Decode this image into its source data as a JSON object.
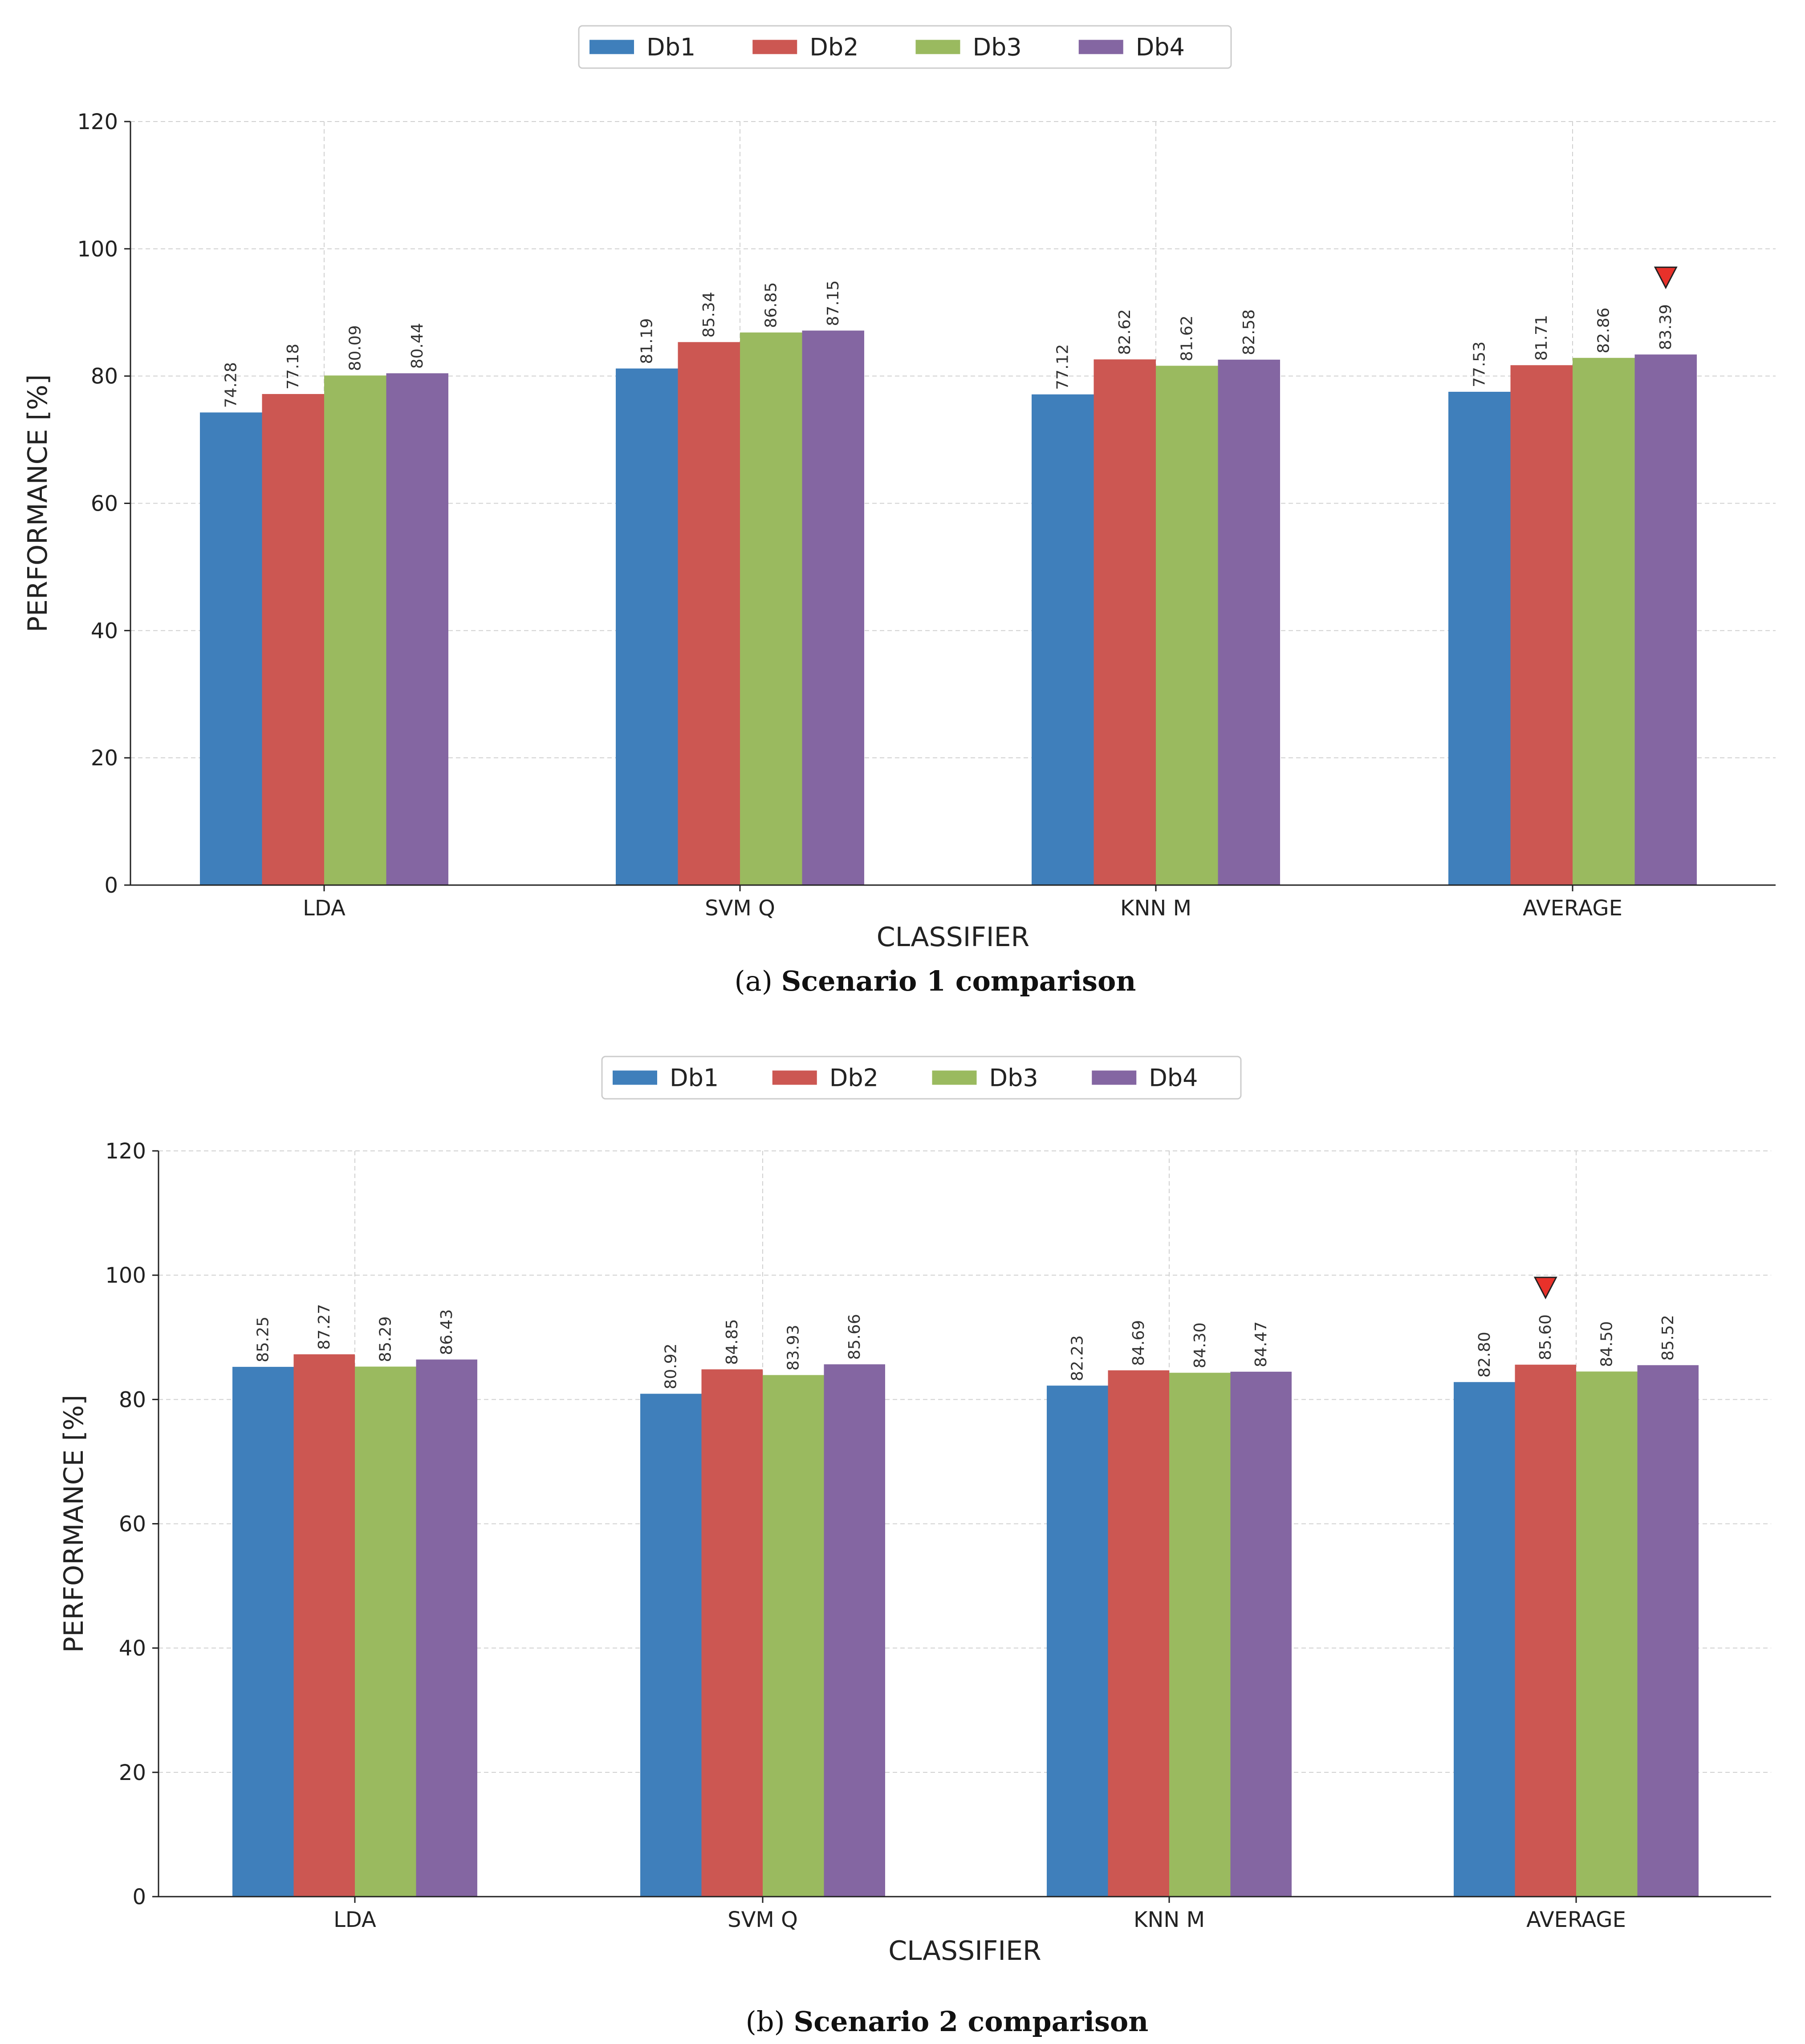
{
  "chart_data": [
    {
      "type": "bar",
      "caption_letter": "a",
      "caption_text": "Scenario 1 comparison",
      "categories": [
        "LDA",
        "SVM Q",
        "KNN M",
        "AVERAGE"
      ],
      "series": [
        {
          "name": "Db1",
          "color": "#3f7fbb",
          "values": [
            74.28,
            81.19,
            77.12,
            77.53
          ],
          "labels": [
            "74.28",
            "81.19",
            "77.12",
            "77.53"
          ]
        },
        {
          "name": "Db2",
          "color": "#cc5752",
          "values": [
            77.18,
            85.34,
            82.62,
            81.71
          ],
          "labels": [
            "77.18",
            "85.34",
            "82.62",
            "81.71"
          ]
        },
        {
          "name": "Db3",
          "color": "#9aba5f",
          "values": [
            80.09,
            86.85,
            81.62,
            82.86
          ],
          "labels": [
            "80.09",
            "86.85",
            "81.62",
            "82.86"
          ]
        },
        {
          "name": "Db4",
          "color": "#8466a2",
          "values": [
            80.44,
            87.15,
            82.58,
            83.39
          ],
          "labels": [
            "80.44",
            "87.15",
            "82.58",
            "83.39"
          ]
        }
      ],
      "xlabel": "CLASSIFIER",
      "ylabel": "PERFORMANCE [%]",
      "ylim": [
        0,
        120
      ],
      "yticks": [
        "0",
        "20",
        "40",
        "60",
        "80",
        "100",
        "120"
      ],
      "grid": true,
      "legend_position": "top-center",
      "highlight": {
        "category_index": 3,
        "series_index": 3,
        "marker": "red-down-triangle",
        "color": "#e8312a"
      }
    },
    {
      "type": "bar",
      "caption_letter": "b",
      "caption_text": "Scenario 2 comparison",
      "categories": [
        "LDA",
        "SVM Q",
        "KNN M",
        "AVERAGE"
      ],
      "series": [
        {
          "name": "Db1",
          "color": "#3f7fbb",
          "values": [
            85.25,
            80.92,
            82.23,
            82.8
          ],
          "labels": [
            "85.25",
            "80.92",
            "82.23",
            "82.80"
          ]
        },
        {
          "name": "Db2",
          "color": "#cc5752",
          "values": [
            87.27,
            84.85,
            84.69,
            85.6
          ],
          "labels": [
            "87.27",
            "84.85",
            "84.69",
            "85.60"
          ]
        },
        {
          "name": "Db3",
          "color": "#9aba5f",
          "values": [
            85.29,
            83.93,
            84.3,
            84.5
          ],
          "labels": [
            "85.29",
            "83.93",
            "84.30",
            "84.50"
          ]
        },
        {
          "name": "Db4",
          "color": "#8466a2",
          "values": [
            86.43,
            85.66,
            84.47,
            85.52
          ],
          "labels": [
            "86.43",
            "85.66",
            "84.47",
            "85.52"
          ]
        }
      ],
      "xlabel": "CLASSIFIER",
      "ylabel": "PERFORMANCE [%]",
      "ylim": [
        0,
        120
      ],
      "yticks": [
        "0",
        "20",
        "40",
        "60",
        "80",
        "100",
        "120"
      ],
      "grid": true,
      "legend_position": "top-center",
      "highlight": {
        "category_index": 3,
        "series_index": 1,
        "marker": "red-down-triangle",
        "color": "#e8312a"
      }
    }
  ]
}
